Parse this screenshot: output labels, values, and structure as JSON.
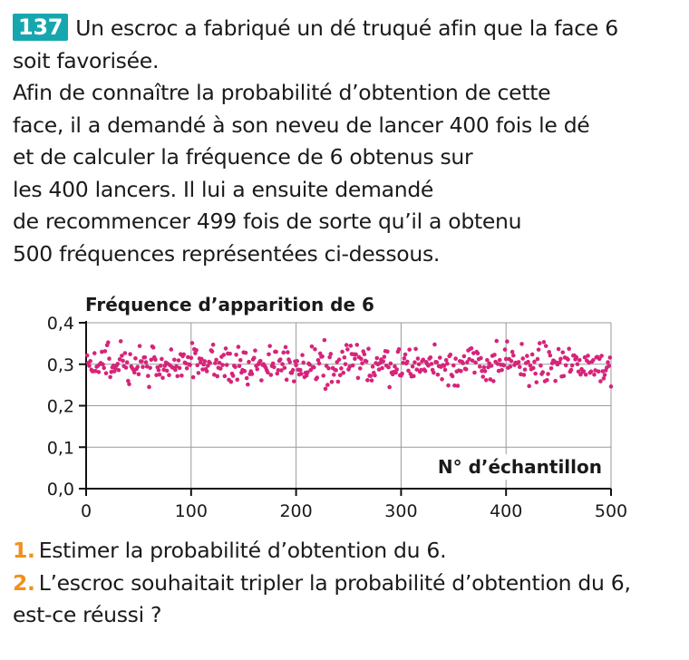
{
  "exercise": {
    "number": "137",
    "lines": [
      "Un escroc a fabriqué un dé truqué afin que la face 6",
      "soit favorisée.",
      "Afin de connaître la probabilité d’obtention de cette",
      "face, il a demandé à son neveu de lancer 400 fois le dé",
      "et de calculer la fréquence de 6 obtenus sur",
      "les 400 lancers. Il lui a ensuite demandé",
      "de recommencer 499 fois de sorte qu’il a obtenu",
      "500 fréquences représentées ci-dessous."
    ]
  },
  "chart_data": {
    "type": "scatter",
    "title": "Fréquence d’apparition de 6",
    "xlabel": "N° d’échantillon",
    "ylabel": "",
    "xlim": [
      0,
      500
    ],
    "ylim": [
      0,
      0.4
    ],
    "x_ticks": [
      "0",
      "100",
      "200",
      "300",
      "400",
      "500"
    ],
    "y_ticks": [
      "0,0",
      "0,1",
      "0,2",
      "0,3",
      "0,4"
    ],
    "grid": true,
    "n_points": 500,
    "center": 0.3,
    "spread": [
      0.23,
      0.37
    ],
    "marker_color": "#d6247a",
    "grid_color": "#9a9a9a",
    "axis_color": "#111111"
  },
  "questions": [
    {
      "num": "1.",
      "text": "Estimer la probabilité d’obtention du 6."
    },
    {
      "num": "2.",
      "text": "L’escroc souhaitait tripler la probabilité d’obtention du 6,",
      "cont": "est-ce réussi ?"
    }
  ],
  "colors": {
    "badge": "#16a7ae",
    "question_number": "#f0901e"
  }
}
